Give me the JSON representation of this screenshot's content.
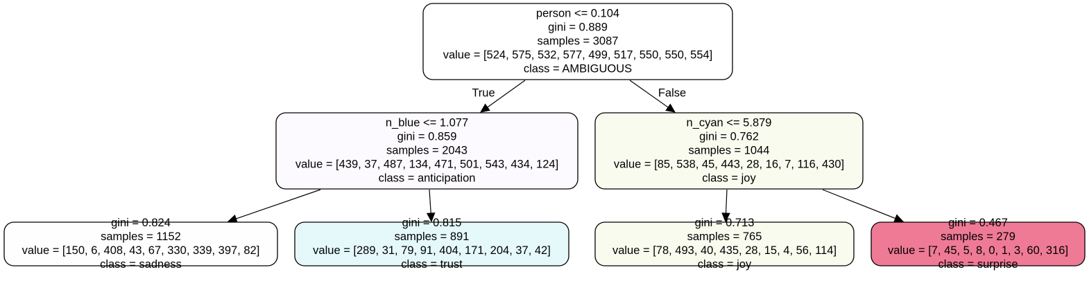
{
  "tree": {
    "nodes": [
      {
        "id": "root",
        "fill": "#ffffff",
        "lines": [
          "person <= 0.104",
          "gini = 0.889",
          "samples = 3087",
          "value = [524, 575, 532, 577, 499, 517, 550, 550, 554]",
          "class = AMBIGUOUS"
        ]
      },
      {
        "id": "left",
        "fill": "#fcfafe",
        "lines": [
          "n_blue <= 1.077",
          "gini = 0.859",
          "samples = 2043",
          "value = [439, 37, 487, 134, 471, 501, 543, 434, 124]",
          "class = anticipation"
        ]
      },
      {
        "id": "right",
        "fill": "#fafbef",
        "lines": [
          "n_cyan <= 5.879",
          "gini = 0.762",
          "samples = 1044",
          "value = [85, 538, 45, 443, 28, 16, 7, 116, 430]",
          "class = joy"
        ]
      },
      {
        "id": "leaf-sadness",
        "fill": "#fefefe",
        "lines": [
          "gini = 0.824",
          "samples = 1152",
          "value = [150, 6, 408, 43, 67, 330, 339, 397, 82]",
          "class = sadness"
        ]
      },
      {
        "id": "leaf-trust",
        "fill": "#e5f9fb",
        "lines": [
          "gini = 0.815",
          "samples = 891",
          "value = [289, 31, 79, 91, 404, 171, 204, 37, 42]",
          "class = trust"
        ]
      },
      {
        "id": "leaf-joy",
        "fill": "#f9fbef",
        "lines": [
          "gini = 0.713",
          "samples = 765",
          "value = [78, 493, 40, 435, 28, 15, 4, 56, 114]",
          "class = joy"
        ]
      },
      {
        "id": "leaf-surprise",
        "fill": "#ef7a96",
        "lines": [
          "gini = 0.467",
          "samples = 279",
          "value = [7, 45, 5, 8, 0, 1, 3, 60, 316]",
          "class = surprise"
        ]
      }
    ],
    "edges": [
      {
        "from": "root",
        "to": "left",
        "label": "True"
      },
      {
        "from": "root",
        "to": "right",
        "label": "False"
      },
      {
        "from": "left",
        "to": "leaf-sadness",
        "label": ""
      },
      {
        "from": "left",
        "to": "leaf-trust",
        "label": ""
      },
      {
        "from": "right",
        "to": "leaf-joy",
        "label": ""
      },
      {
        "from": "right",
        "to": "leaf-surprise",
        "label": ""
      }
    ]
  }
}
